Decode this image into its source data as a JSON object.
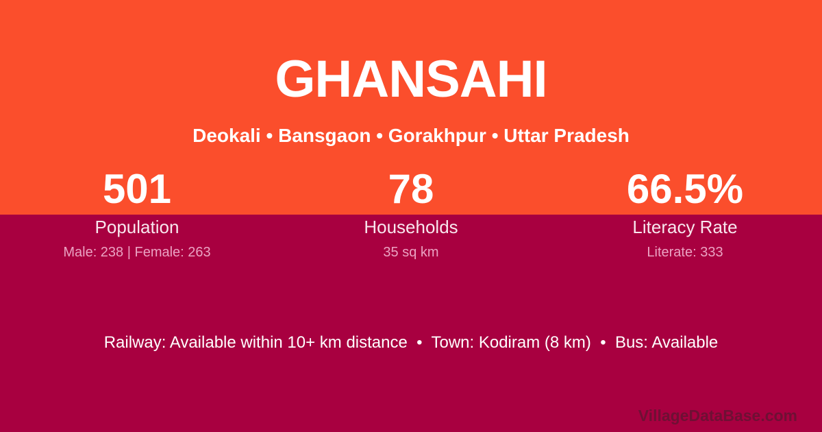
{
  "header": {
    "title": "GHANSAHI",
    "subtitle": "Deokali • Bansgaon • Gorakhpur • Uttar Pradesh"
  },
  "stats": [
    {
      "value": "501",
      "label": "Population",
      "detail": "Male: 238 | Female: 263"
    },
    {
      "value": "78",
      "label": "Households",
      "detail": "35 sq km"
    },
    {
      "value": "66.5%",
      "label": "Literacy Rate",
      "detail": "Literate: 333"
    }
  ],
  "footer": {
    "info": "Railway: Available within 10+ km distance  •  Town: Kodiram (8 km)  •  Bus: Available",
    "watermark": "VillageDataBase.com"
  },
  "colors": {
    "accent_orange": "#FB4E2C",
    "accent_maroon": "#A80040",
    "text_white": "#FFFFFF",
    "label_pink": "#F8E7EE",
    "detail_pink": "#EBA3C3",
    "watermark_gray": "rgba(40,35,38,0.45)"
  }
}
